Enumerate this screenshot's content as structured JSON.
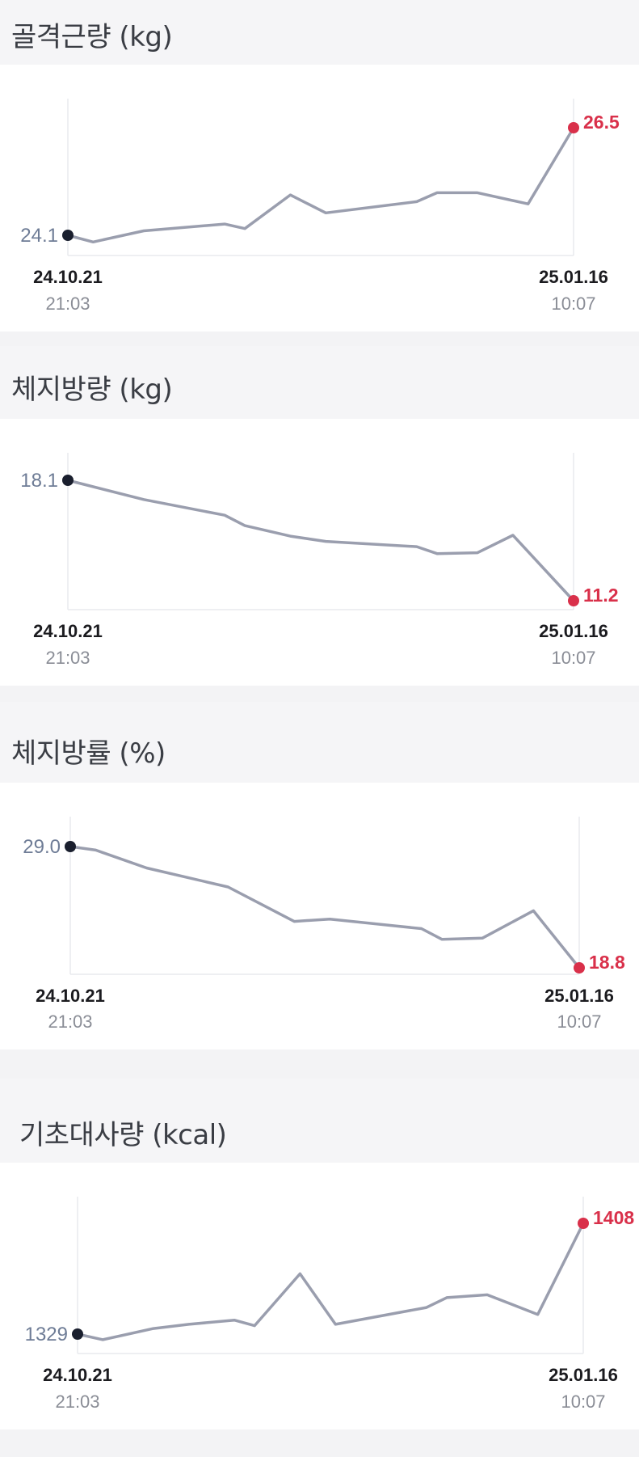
{
  "colors": {
    "line": "#9a9eae",
    "start_dot": "#1a1f2e",
    "end_dot": "#d9304a",
    "end_text": "#d9304a",
    "start_text": "#6e7c96",
    "grid": "#e9eaee",
    "header_bg": "#f5f5f7"
  },
  "charts": [
    {
      "title": "골격근량 (kg)",
      "start": {
        "value": "24.1",
        "date": "24.10.21",
        "time": "21:03"
      },
      "end": {
        "value": "26.5",
        "date": "25.01.16",
        "time": "10:07"
      }
    },
    {
      "title": "체지방량 (kg)",
      "start": {
        "value": "18.1",
        "date": "24.10.21",
        "time": "21:03"
      },
      "end": {
        "value": "11.2",
        "date": "25.01.16",
        "time": "10:07"
      }
    },
    {
      "title": "체지방률 (%)",
      "start": {
        "value": "29.0",
        "date": "24.10.21",
        "time": "21:03"
      },
      "end": {
        "value": "18.8",
        "date": "25.01.16",
        "time": "10:07"
      }
    },
    {
      "title": "기초대사량 (kcal)",
      "start": {
        "value": "1329",
        "date": "24.10.21",
        "time": "21:03"
      },
      "end": {
        "value": "1408",
        "date": "25.01.16",
        "time": "10:07"
      }
    }
  ],
  "chart_data": [
    {
      "type": "line",
      "title": "골격근량 (kg)",
      "x_fraction": [
        0,
        0.05,
        0.15,
        0.31,
        0.35,
        0.44,
        0.51,
        0.69,
        0.73,
        0.81,
        0.91,
        1
      ],
      "values": [
        24.1,
        23.95,
        24.2,
        24.35,
        24.25,
        25.0,
        24.6,
        24.85,
        25.05,
        25.05,
        24.8,
        26.5
      ],
      "ylim": [
        24.1,
        26.5
      ],
      "grid": false
    },
    {
      "type": "line",
      "title": "체지방량 (kg)",
      "x_fraction": [
        0,
        0.15,
        0.31,
        0.35,
        0.44,
        0.51,
        0.69,
        0.73,
        0.81,
        0.88,
        1
      ],
      "values": [
        18.1,
        17.0,
        16.1,
        15.5,
        14.9,
        14.6,
        14.3,
        13.9,
        13.95,
        14.95,
        11.2
      ],
      "ylim": [
        11.2,
        18.1
      ],
      "grid": false
    },
    {
      "type": "line",
      "title": "체지방률 (%)",
      "x_fraction": [
        0,
        0.05,
        0.15,
        0.31,
        0.44,
        0.51,
        0.69,
        0.73,
        0.81,
        0.91,
        1
      ],
      "values": [
        29.0,
        28.7,
        27.2,
        25.6,
        22.7,
        22.9,
        22.1,
        21.2,
        21.3,
        23.6,
        18.8
      ],
      "ylim": [
        18.8,
        29.0
      ],
      "grid": false
    },
    {
      "type": "line",
      "title": "기초대사량 (kcal)",
      "x_fraction": [
        0,
        0.05,
        0.15,
        0.22,
        0.31,
        0.35,
        0.44,
        0.51,
        0.69,
        0.73,
        0.81,
        0.91,
        1
      ],
      "values": [
        1329,
        1325,
        1333,
        1336,
        1339,
        1335,
        1372,
        1336,
        1348,
        1355,
        1357,
        1343,
        1408
      ],
      "ylim": [
        1329,
        1408
      ],
      "grid": false
    }
  ]
}
